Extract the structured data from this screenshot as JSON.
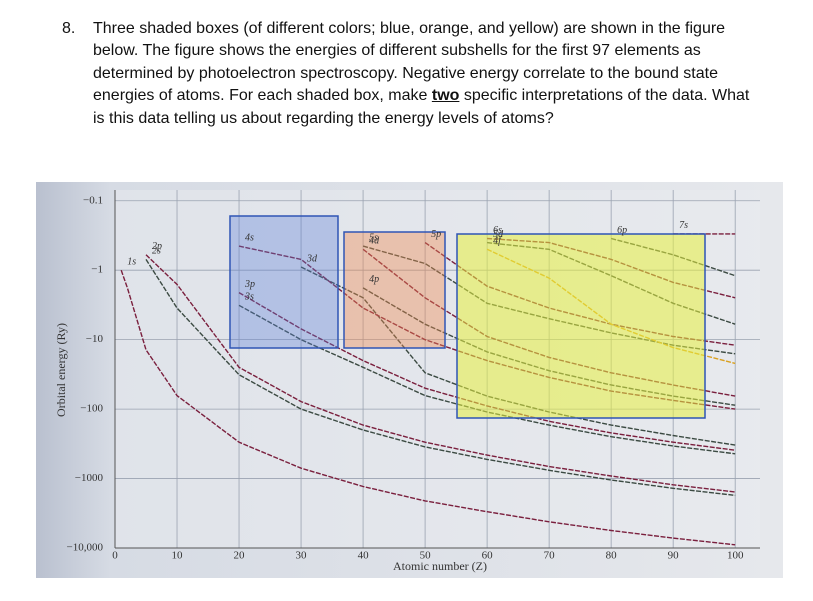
{
  "question": {
    "number": "8.",
    "text_before": "Three shaded boxes (of different colors; blue, orange, and yellow) are shown in the figure below.  The figure shows the energies of different subshells for the first 97 elements as determined by photoelectron spectroscopy.  Negative energy correlate to the bound state energies of atoms.   For each shaded box, make ",
    "emphasis": "two",
    "text_after": " specific interpretations of the data.  What is this data telling us about regarding the energy levels of atoms?"
  },
  "chart_data": {
    "type": "line",
    "x_label": "Atomic number (Z)",
    "y_label": "Orbital energy (Ry)",
    "yscale": "log",
    "grid": true,
    "xlim": [
      0,
      104
    ],
    "xticks": [
      0,
      10,
      20,
      30,
      40,
      50,
      60,
      70,
      80,
      90,
      100
    ],
    "ylim": [
      -10000,
      -0.07
    ],
    "yticks": [
      {
        "value": -0.1,
        "label": "−0.1"
      },
      {
        "value": -1,
        "label": "−1"
      },
      {
        "value": -10,
        "label": "−10"
      },
      {
        "value": -100,
        "label": "−100"
      },
      {
        "value": -1000,
        "label": "−1000"
      },
      {
        "value": -10000,
        "label": "−10,000"
      }
    ],
    "x": [
      1,
      2,
      5,
      10,
      20,
      30,
      40,
      50,
      60,
      70,
      80,
      90,
      100
    ],
    "series": [
      {
        "name": "1s",
        "color": "#7a1f3d",
        "values": [
          -1,
          -1.8,
          -14,
          -64,
          -300,
          -710,
          -1300,
          -2100,
          -3000,
          -4200,
          -5600,
          -7200,
          -9000
        ]
      },
      {
        "name": "2s",
        "color": "#3b4a42",
        "values": [
          null,
          null,
          -0.7,
          -3.5,
          -32,
          -100,
          -200,
          -350,
          -530,
          -760,
          -1050,
          -1380,
          -1750
        ]
      },
      {
        "name": "2p",
        "color": "#7a1f3d",
        "values": [
          null,
          null,
          -0.6,
          -1.6,
          -25,
          -78,
          -170,
          -300,
          -460,
          -670,
          -920,
          -1230,
          -1560
        ]
      },
      {
        "name": "3s",
        "color": "#3b4a42",
        "values": [
          null,
          null,
          null,
          null,
          -3.2,
          -10,
          -25,
          -64,
          -110,
          -170,
          -250,
          -340,
          -440
        ]
      },
      {
        "name": "3p",
        "color": "#7a1f3d",
        "values": [
          null,
          null,
          null,
          null,
          -2.1,
          -7,
          -20,
          -50,
          -90,
          -150,
          -220,
          -300,
          -390
        ]
      },
      {
        "name": "3d",
        "color": "#3b4a42",
        "values": [
          null,
          null,
          null,
          null,
          null,
          -0.9,
          -2.5,
          -30,
          -65,
          -110,
          -170,
          -240,
          -330
        ]
      },
      {
        "name": "4s",
        "color": "#7a1f3d",
        "values": [
          null,
          null,
          null,
          null,
          -0.45,
          -0.7,
          -3.5,
          -10,
          -20,
          -35,
          -55,
          -75,
          -100
        ]
      },
      {
        "name": "4p",
        "color": "#3b4a42",
        "values": [
          null,
          null,
          null,
          null,
          null,
          null,
          -1.8,
          -6,
          -15,
          -28,
          -45,
          -65,
          -88
        ]
      },
      {
        "name": "4d",
        "color": "#7a1f3d",
        "values": [
          null,
          null,
          null,
          null,
          null,
          null,
          -0.5,
          -2.5,
          -9,
          -18,
          -30,
          -45,
          -65
        ]
      },
      {
        "name": "5s",
        "color": "#3b4a42",
        "values": [
          null,
          null,
          null,
          null,
          null,
          null,
          -0.45,
          -0.8,
          -3,
          -5,
          -8,
          -12,
          -16
        ]
      },
      {
        "name": "5p",
        "color": "#7a1f3d",
        "values": [
          null,
          null,
          null,
          null,
          null,
          null,
          null,
          -0.4,
          -1.7,
          -3.5,
          -6,
          -9,
          -12
        ]
      },
      {
        "name": "4f",
        "color": "#d9a020",
        "values": [
          null,
          null,
          null,
          null,
          null,
          null,
          null,
          null,
          -0.5,
          -1.3,
          -6,
          -13,
          -22
        ]
      },
      {
        "name": "5d",
        "color": "#3b4a42",
        "values": [
          null,
          null,
          null,
          null,
          null,
          null,
          null,
          null,
          -0.4,
          -0.5,
          -1.2,
          -3,
          -6
        ]
      },
      {
        "name": "6s",
        "color": "#7a1f3d",
        "values": [
          null,
          null,
          null,
          null,
          null,
          null,
          null,
          null,
          -0.35,
          -0.4,
          -0.7,
          -1.5,
          -2.5
        ]
      },
      {
        "name": "6p",
        "color": "#3b4a42",
        "values": [
          null,
          null,
          null,
          null,
          null,
          null,
          null,
          null,
          null,
          null,
          -0.35,
          -0.6,
          -1.2
        ]
      },
      {
        "name": "7s",
        "color": "#7a1f3d",
        "values": [
          null,
          null,
          null,
          null,
          null,
          null,
          null,
          null,
          null,
          null,
          null,
          -0.3,
          -0.3
        ]
      }
    ]
  }
}
